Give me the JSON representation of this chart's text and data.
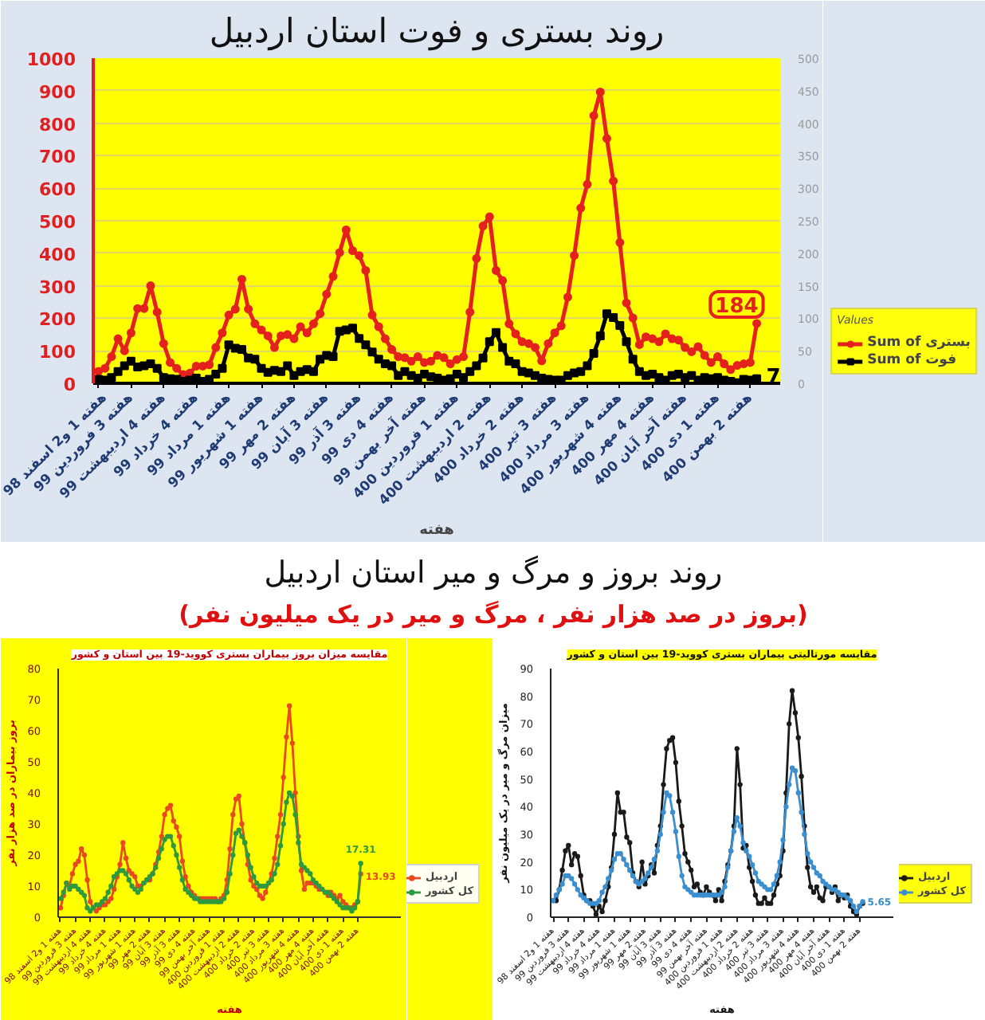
{
  "chart_data": [
    {
      "type": "line",
      "title": "روند بستری و فوت استان اردبیل",
      "xlabel": "هفته",
      "categories": [
        "هفته 1 و2 اسفند 98",
        null,
        null,
        null,
        null,
        "هفته 3 فروردین 99",
        null,
        null,
        null,
        null,
        "هفته 4 اردیبهشت 99",
        null,
        null,
        null,
        null,
        "هفته 4 خرداد 99",
        null,
        null,
        null,
        null,
        "هفته 1 مرداد 99",
        null,
        null,
        null,
        null,
        "هفته 1 شهریور 99",
        null,
        null,
        null,
        null,
        "هفته 2 مهر 99",
        null,
        null,
        null,
        null,
        "هفته 3 آبان 99",
        null,
        null,
        null,
        null,
        "هفته 3 آذر 99",
        null,
        null,
        null,
        null,
        "هفته 4 دی 99",
        null,
        null,
        null,
        null,
        "هفته آخر بهمن 99",
        null,
        null,
        null,
        null,
        "هفته 1 فروردین 400",
        null,
        null,
        null,
        null,
        "هفته 2 اردیبهشت 400",
        null,
        null,
        null,
        null,
        "هفته 2 خرداد 400",
        null,
        null,
        null,
        null,
        "هفته 3 تیر 400",
        null,
        null,
        null,
        null,
        "هفته 3 مرداد 400",
        null,
        null,
        null,
        null,
        "هفته 4 شهریور 400",
        null,
        null,
        null,
        null,
        "هفته 4 مهر 400",
        null,
        null,
        null,
        null,
        "هفته آخر آبان 400",
        null,
        null,
        null,
        null,
        "هفته 1 دی 400",
        null,
        null,
        null,
        null,
        "هفته 2 بهمن 400",
        null
      ],
      "ylim": [
        0,
        1000
      ],
      "yticks": [
        0,
        100,
        200,
        300,
        400,
        500,
        600,
        700,
        800,
        900,
        1000
      ],
      "y2lim": [
        0,
        500
      ],
      "y2ticks": [
        0,
        50,
        100,
        150,
        200,
        250,
        300,
        350,
        400,
        450,
        500
      ],
      "grid": "y",
      "legend": "bottom right",
      "legend_title": "Values",
      "series": [
        {
          "name": "Sum of بستری",
          "color": "#e4211c",
          "marker": "circle",
          "values": [
            37,
            46,
            82,
            137,
            100,
            155,
            230,
            230,
            300,
            219,
            122,
            64,
            46,
            27,
            31,
            53,
            53,
            57,
            110,
            155,
            210,
            228,
            320,
            228,
            183,
            164,
            146,
            110,
            146,
            150,
            137,
            174,
            155,
            183,
            214,
            274,
            329,
            402,
            472,
            408,
            393,
            347,
            210,
            174,
            137,
            104,
            82,
            79,
            68,
            82,
            64,
            68,
            86,
            79,
            60,
            73,
            82,
            219,
            384,
            484,
            512,
            347,
            316,
            183,
            152,
            128,
            122,
            110,
            69,
            122,
            155,
            177,
            265,
            393,
            539,
            612,
            823,
            896,
            753,
            622,
            433,
            247,
            201,
            119,
            143,
            137,
            128,
            152,
            137,
            133,
            110,
            97,
            113,
            86,
            64,
            82,
            60,
            42,
            55,
            60,
            64,
            184
          ],
          "value_labels": [
            null,
            null,
            null,
            null,
            null,
            null,
            null,
            null,
            null,
            null,
            null,
            null,
            null,
            null,
            null,
            null,
            null,
            null,
            null,
            null,
            null,
            null,
            null,
            null,
            null,
            null,
            null,
            null,
            null,
            null,
            null,
            null,
            null,
            null,
            null,
            null,
            null,
            null,
            null,
            null,
            null,
            null,
            null,
            null,
            null,
            null,
            null,
            null,
            null,
            null,
            null,
            null,
            null,
            null,
            null,
            null,
            null,
            null,
            null,
            null,
            null,
            null,
            null,
            null,
            null,
            null,
            null,
            null,
            null,
            null,
            null,
            null,
            null,
            null,
            null,
            null,
            null,
            null,
            null,
            null,
            null,
            null,
            null,
            null,
            null,
            null,
            null,
            null,
            null,
            null,
            null,
            null,
            null,
            null,
            null,
            null,
            null,
            null,
            null,
            null,
            null,
            "184"
          ]
        },
        {
          "name": "Sum of فوت",
          "color": "#000000",
          "marker": "square",
          "axis": "y2",
          "values": [
            6,
            5,
            9,
            18,
            27,
            34,
            25,
            27,
            30,
            23,
            9,
            7,
            6,
            3,
            5,
            8,
            3,
            6,
            14,
            23,
            59,
            54,
            52,
            39,
            37,
            23,
            17,
            20,
            18,
            27,
            12,
            18,
            21,
            18,
            37,
            43,
            41,
            80,
            82,
            85,
            69,
            59,
            48,
            37,
            30,
            27,
            12,
            18,
            12,
            8,
            14,
            10,
            8,
            5,
            7,
            14,
            9,
            18,
            27,
            39,
            64,
            78,
            55,
            34,
            30,
            18,
            16,
            12,
            8,
            6,
            5,
            5,
            12,
            16,
            18,
            27,
            46,
            73,
            107,
            101,
            89,
            64,
            37,
            18,
            12,
            14,
            9,
            5,
            12,
            14,
            9,
            12,
            5,
            9,
            7,
            9,
            5,
            3,
            1,
            6,
            5,
            7
          ],
          "value_labels": [
            null,
            null,
            null,
            null,
            null,
            null,
            null,
            null,
            null,
            null,
            null,
            null,
            null,
            null,
            null,
            null,
            null,
            null,
            null,
            null,
            null,
            null,
            null,
            null,
            null,
            null,
            null,
            null,
            null,
            null,
            null,
            null,
            null,
            null,
            null,
            null,
            null,
            null,
            null,
            null,
            null,
            null,
            null,
            null,
            null,
            null,
            null,
            null,
            null,
            null,
            null,
            null,
            null,
            null,
            null,
            null,
            null,
            null,
            null,
            null,
            null,
            null,
            null,
            null,
            null,
            null,
            null,
            null,
            null,
            null,
            null,
            null,
            null,
            null,
            null,
            null,
            null,
            null,
            null,
            null,
            null,
            null,
            null,
            null,
            null,
            null,
            null,
            null,
            null,
            null,
            null,
            null,
            null,
            null,
            null,
            null,
            null,
            null,
            null,
            null,
            null,
            "7"
          ]
        }
      ]
    },
    {
      "type": "line",
      "title": "مقایسه میزان بروز بیماران بستری کووید-19 بین استان و کشور",
      "xlabel": "هفته",
      "ylabel": "بروز بیماران در صد هزار نفر",
      "annotations": [
        "روند بروز و مرگ و میر استان اردبیل",
        "(بروز در صد هزار نفر ، مرگ و میر در یک میلیون نفر)"
      ],
      "categories": [
        "هفته 1 و2 اسفند 98",
        null,
        null,
        null,
        null,
        "هفته 3 فروردین 99",
        null,
        null,
        null,
        null,
        "هفته 4 اردیبهشت 99",
        null,
        null,
        null,
        null,
        "هفته 4 خرداد 99",
        null,
        null,
        null,
        null,
        "هفته 1 مرداد 99",
        null,
        null,
        null,
        null,
        "هفته 1 شهریور 99",
        null,
        null,
        null,
        null,
        "هفته 2 مهر 99",
        null,
        null,
        null,
        null,
        "هفته 3 آبان 99",
        null,
        null,
        null,
        null,
        "هفته 3 آذر 99",
        null,
        null,
        null,
        null,
        "هفته 4 دی 99",
        null,
        null,
        null,
        null,
        "هفته آخر بهمن 99",
        null,
        null,
        null,
        null,
        "هفته 1 فروردین 400",
        null,
        null,
        null,
        null,
        "هفته 2 اردیبهشت 400",
        null,
        null,
        null,
        null,
        "هفته 2 خرداد 400",
        null,
        null,
        null,
        null,
        "هفته 3 تیر 400",
        null,
        null,
        null,
        null,
        "هفته 3 مرداد 400",
        null,
        null,
        null,
        null,
        "هفته 4 شهریور 400",
        null,
        null,
        null,
        null,
        "هفته 4 مهر 400",
        null,
        null,
        null,
        null,
        "هفته آخر آبان 400",
        null,
        null,
        null,
        null,
        "هفته 1 دی 400",
        null,
        null,
        null,
        null,
        "هفته 2 بهمن 400",
        null
      ],
      "ylim": [
        0,
        80
      ],
      "yticks": [
        0,
        10,
        20,
        30,
        40,
        50,
        60,
        70,
        80
      ],
      "legend": "bottom right",
      "marker": "circle",
      "series": [
        {
          "name": "اردبیل",
          "color": "#e8491d",
          "values": [
            3,
            7,
            11,
            10,
            14,
            17,
            18,
            22,
            20,
            12,
            5,
            3,
            2,
            3,
            4,
            4,
            5,
            6,
            9,
            13,
            17,
            24,
            19,
            15,
            14,
            13,
            10,
            10,
            11,
            12,
            12,
            14,
            17,
            21,
            26,
            33,
            35,
            36,
            31,
            29,
            26,
            18,
            13,
            10,
            8,
            7,
            6,
            6,
            6,
            6,
            6,
            6,
            6,
            5,
            6,
            7,
            12,
            22,
            33,
            38,
            39,
            30,
            24,
            17,
            12,
            10,
            9,
            7,
            6,
            8,
            11,
            14,
            19,
            26,
            33,
            45,
            58,
            68,
            56,
            40,
            26,
            15,
            9,
            11,
            11,
            11,
            10,
            9,
            9,
            8,
            7,
            8,
            7,
            6,
            7,
            5,
            4,
            3,
            3,
            4,
            5,
            13.93
          ],
          "value_labels": [
            null,
            null,
            null,
            null,
            null,
            null,
            null,
            null,
            null,
            null,
            null,
            null,
            null,
            null,
            null,
            null,
            null,
            null,
            null,
            null,
            null,
            null,
            null,
            null,
            null,
            null,
            null,
            null,
            null,
            null,
            null,
            null,
            null,
            null,
            null,
            null,
            null,
            null,
            null,
            null,
            null,
            null,
            null,
            null,
            null,
            null,
            null,
            null,
            null,
            null,
            null,
            null,
            null,
            null,
            null,
            null,
            null,
            null,
            null,
            null,
            null,
            null,
            null,
            null,
            null,
            null,
            null,
            null,
            null,
            null,
            null,
            null,
            null,
            null,
            null,
            null,
            null,
            null,
            null,
            null,
            null,
            null,
            null,
            null,
            null,
            null,
            null,
            null,
            null,
            null,
            null,
            null,
            null,
            null,
            null,
            null,
            null,
            null,
            null,
            null,
            null,
            "13.93"
          ]
        },
        {
          "name": "کل کشور",
          "color": "#2e9a3e",
          "values": [
            6,
            8,
            11,
            9,
            10,
            10,
            9,
            8,
            7,
            3,
            2,
            3,
            4,
            4,
            5,
            6,
            8,
            10,
            13,
            14,
            15,
            15,
            14,
            12,
            10,
            9,
            8,
            9,
            11,
            12,
            13,
            14,
            16,
            19,
            22,
            25,
            26,
            26,
            23,
            20,
            16,
            12,
            9,
            8,
            7,
            6,
            6,
            5,
            5,
            5,
            5,
            5,
            5,
            5,
            5,
            6,
            8,
            14,
            20,
            27,
            28,
            26,
            24,
            20,
            16,
            13,
            11,
            10,
            10,
            10,
            11,
            12,
            14,
            17,
            23,
            30,
            37,
            40,
            39,
            33,
            24,
            17,
            16,
            15,
            14,
            12,
            11,
            10,
            9,
            8,
            8,
            7,
            6,
            5,
            4,
            3,
            3,
            3,
            2,
            3,
            5,
            17.31
          ],
          "value_labels": [
            null,
            null,
            null,
            null,
            null,
            null,
            null,
            null,
            null,
            null,
            null,
            null,
            null,
            null,
            null,
            null,
            null,
            null,
            null,
            null,
            null,
            null,
            null,
            null,
            null,
            null,
            null,
            null,
            null,
            null,
            null,
            null,
            null,
            null,
            null,
            null,
            null,
            null,
            null,
            null,
            null,
            null,
            null,
            null,
            null,
            null,
            null,
            null,
            null,
            null,
            null,
            null,
            null,
            null,
            null,
            null,
            null,
            null,
            null,
            null,
            null,
            null,
            null,
            null,
            null,
            null,
            null,
            null,
            null,
            null,
            null,
            null,
            null,
            null,
            null,
            null,
            null,
            null,
            null,
            null,
            null,
            null,
            null,
            null,
            null,
            null,
            null,
            null,
            null,
            null,
            null,
            null,
            null,
            null,
            null,
            null,
            null,
            null,
            null,
            null,
            null,
            "17.31"
          ]
        }
      ]
    },
    {
      "type": "line",
      "title": "مقایسه مورتالیتی بیماران بستری کووید-19 بین استان و کشور",
      "xlabel": "هفته",
      "ylabel": "میزان مرگ و میر در یک میلیون نفر",
      "categories": [
        "هفته 1 و2 اسفند 98",
        null,
        null,
        null,
        null,
        "هفته 3 فروردین 99",
        null,
        null,
        null,
        null,
        "هفته 4 اردیبهشت 99",
        null,
        null,
        null,
        null,
        "هفته 4 خرداد 99",
        null,
        null,
        null,
        null,
        "هفته 1 مرداد 99",
        null,
        null,
        null,
        null,
        "هفته 1 شهریور 99",
        null,
        null,
        null,
        null,
        "هفته 2 مهر 99",
        null,
        null,
        null,
        null,
        "هفته 3 آبان 99",
        null,
        null,
        null,
        null,
        "هفته 3 آذر 99",
        null,
        null,
        null,
        null,
        "هفته 4 دی 99",
        null,
        null,
        null,
        null,
        "هفته آخر بهمن 99",
        null,
        null,
        null,
        null,
        "هفته 1 فروردین 400",
        null,
        null,
        null,
        null,
        "هفته 2 اردیبهشت 400",
        null,
        null,
        null,
        null,
        "هفته 2 خرداد 400",
        null,
        null,
        null,
        null,
        "هفته 3 تیر 400",
        null,
        null,
        null,
        null,
        "هفته 3 مرداد 400",
        null,
        null,
        null,
        null,
        "هفته 4 شهریور 400",
        null,
        null,
        null,
        null,
        "هفته 4 مهر 400",
        null,
        null,
        null,
        null,
        "هفته آخر آبان 400",
        null,
        null,
        null,
        null,
        "هفته 1 دی 400",
        null,
        null,
        null,
        null,
        "هفته 2 بهمن 400",
        null
      ],
      "ylim": [
        0,
        90
      ],
      "yticks": [
        0,
        10,
        20,
        30,
        40,
        50,
        60,
        70,
        80,
        90
      ],
      "legend": "bottom right",
      "marker": "circle",
      "series": [
        {
          "name": "اردبیل",
          "color": "#1a1a1a",
          "values": [
            6,
            6,
            10,
            17,
            24,
            26,
            19,
            23,
            22,
            15,
            8,
            6,
            6,
            4,
            1,
            4,
            2,
            6,
            11,
            18,
            30,
            45,
            38,
            38,
            29,
            27,
            16,
            13,
            11,
            20,
            12,
            15,
            19,
            16,
            26,
            33,
            48,
            61,
            64,
            65,
            56,
            42,
            33,
            23,
            20,
            17,
            11,
            12,
            9,
            8,
            11,
            9,
            8,
            6,
            10,
            6,
            13,
            19,
            24,
            33,
            61,
            48,
            25,
            26,
            18,
            13,
            8,
            5,
            5,
            7,
            5,
            5,
            8,
            12,
            15,
            24,
            45,
            70,
            82,
            74,
            65,
            51,
            33,
            18,
            11,
            9,
            11,
            7,
            6,
            11,
            11,
            9,
            11,
            6,
            8,
            7,
            8,
            4,
            2,
            1,
            4,
            5
          ]
        },
        {
          "name": "کل کشور",
          "color": "#3b8fd0",
          "values": [
            6,
            8,
            10,
            12,
            15,
            15,
            14,
            12,
            10,
            8,
            7,
            6,
            5,
            5,
            5,
            6,
            9,
            11,
            14,
            17,
            21,
            23,
            23,
            21,
            19,
            17,
            15,
            13,
            12,
            13,
            14,
            16,
            18,
            21,
            24,
            30,
            38,
            45,
            44,
            38,
            31,
            22,
            15,
            11,
            10,
            9,
            8,
            8,
            8,
            8,
            8,
            8,
            8,
            8,
            8,
            9,
            11,
            18,
            24,
            31,
            36,
            33,
            27,
            24,
            22,
            19,
            16,
            13,
            12,
            11,
            10,
            10,
            12,
            15,
            20,
            28,
            40,
            48,
            54,
            53,
            45,
            38,
            30,
            23,
            20,
            18,
            16,
            15,
            13,
            12,
            11,
            10,
            10,
            9,
            8,
            8,
            7,
            6,
            4,
            2,
            4,
            5.65
          ],
          "value_labels": [
            null,
            null,
            null,
            null,
            null,
            null,
            null,
            null,
            null,
            null,
            null,
            null,
            null,
            null,
            null,
            null,
            null,
            null,
            null,
            null,
            null,
            null,
            null,
            null,
            null,
            null,
            null,
            null,
            null,
            null,
            null,
            null,
            null,
            null,
            null,
            null,
            null,
            null,
            null,
            null,
            null,
            null,
            null,
            null,
            null,
            null,
            null,
            null,
            null,
            null,
            null,
            null,
            null,
            null,
            null,
            null,
            null,
            null,
            null,
            null,
            null,
            null,
            null,
            null,
            null,
            null,
            null,
            null,
            null,
            null,
            null,
            null,
            null,
            null,
            null,
            null,
            null,
            null,
            null,
            null,
            null,
            null,
            null,
            null,
            null,
            null,
            null,
            null,
            null,
            null,
            null,
            null,
            null,
            null,
            null,
            null,
            null,
            null,
            null,
            null,
            null,
            "5.65"
          ]
        }
      ]
    }
  ]
}
